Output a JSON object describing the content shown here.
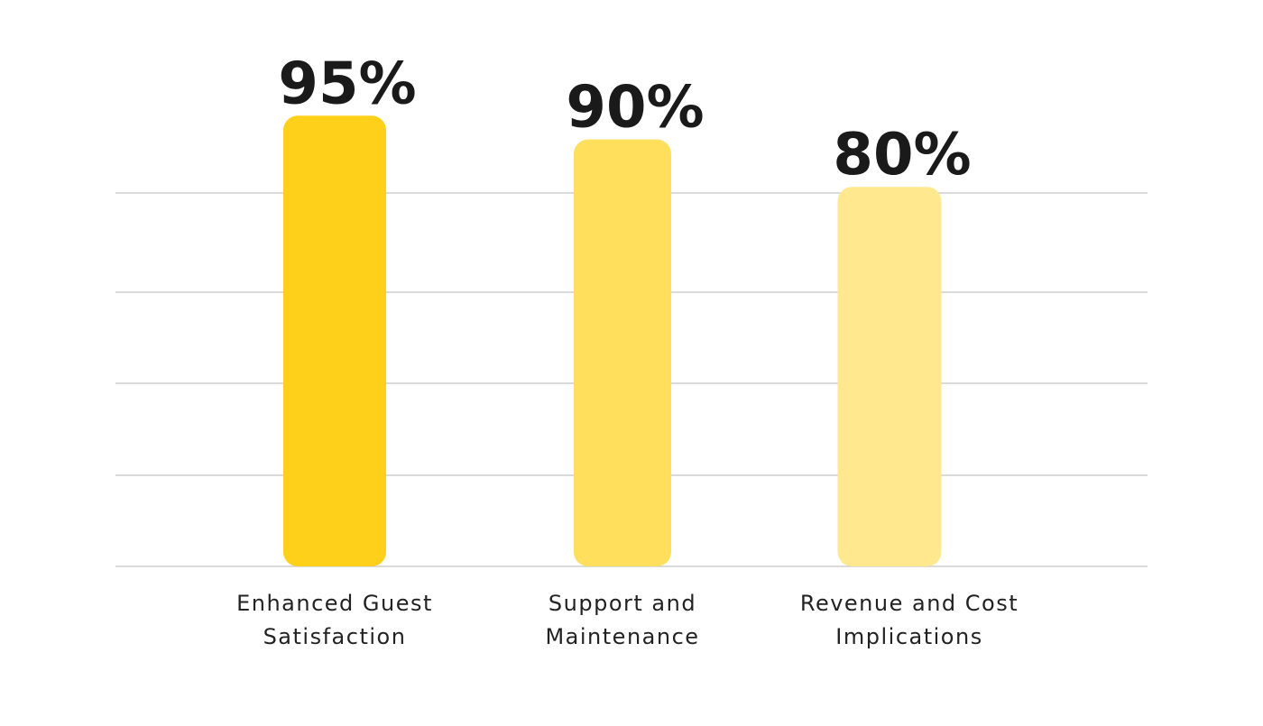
{
  "chart_data": {
    "type": "bar",
    "title": "",
    "xlabel": "",
    "ylabel": "",
    "categories": [
      [
        "Enhanced Guest",
        "Satisfaction"
      ],
      [
        "Support and",
        "Maintenance"
      ],
      [
        "Revenue and Cost",
        "Implications"
      ]
    ],
    "values": [
      95,
      90,
      80
    ],
    "value_labels": [
      "95%",
      "90%",
      "80%"
    ],
    "ylim": [
      0,
      100
    ],
    "grid": true,
    "legend": "none",
    "colors": [
      "#FFD01A",
      "#FFDF5C",
      "#FFE88E"
    ]
  }
}
